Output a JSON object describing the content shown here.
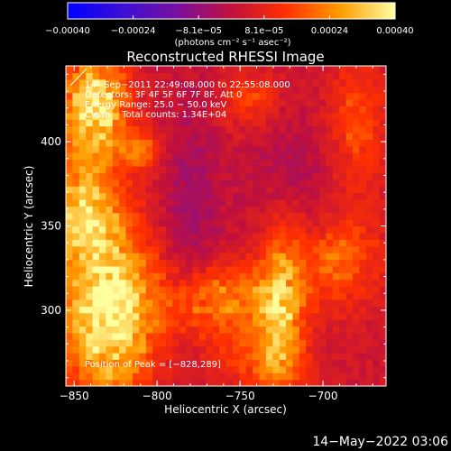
{
  "chart_data": {
    "type": "heatmap",
    "title": "Reconstructed RHESSI Image",
    "xlabel": "Heliocentric X (arcsec)",
    "ylabel": "Heliocentric Y (arcsec)",
    "xlim": [
      -855,
      -662
    ],
    "ylim": [
      255,
      445
    ],
    "x_ticks": [
      {
        "value": -850,
        "label": "−850"
      },
      {
        "value": -800,
        "label": "−800"
      },
      {
        "value": -750,
        "label": "−750"
      },
      {
        "value": -700,
        "label": "−700"
      }
    ],
    "y_ticks": [
      {
        "value": 300,
        "label": "300"
      },
      {
        "value": 350,
        "label": "350"
      },
      {
        "value": 400,
        "label": "400"
      }
    ],
    "colorbar": {
      "range": [
        -0.0004,
        0.0004
      ],
      "tick_labels": [
        "−0.00040",
        "−0.00024",
        "−8.1e−05",
        "8.1e−05",
        "0.00024",
        "0.00040"
      ],
      "unit_label": "(photons cm⁻² s⁻¹ asec⁻²)",
      "colors": [
        "#0000ff",
        "#3b0fd6",
        "#7a0fa0",
        "#c0103c",
        "#ff3000",
        "#ff9c00",
        "#ffffa0"
      ]
    },
    "info_lines": [
      "14−Sep−2011 22:49:08.000 to 22:55:08.000",
      "Detectors: 3F 4F 5F 6F 7F 8F, Att 0",
      "Energy Range: 25.0 − 50.0 keV",
      "Clean    Total counts: 1.34E+04"
    ],
    "peak_label": "Position of Peak = [−828,289]",
    "peak": {
      "x": -828,
      "y": 289
    },
    "intensity_grid": {
      "x_range": [
        -855,
        -662
      ],
      "y_range": [
        255,
        445
      ],
      "nx": 48,
      "ny": 48,
      "min": -0.0001,
      "max": 0.0004,
      "hot_regions": [
        {
          "x": -838,
          "y": 420,
          "sx": 14,
          "sy": 22,
          "v": 0.00036
        },
        {
          "x": -830,
          "y": 300,
          "sx": 20,
          "sy": 35,
          "v": 0.0004
        },
        {
          "x": -845,
          "y": 360,
          "sx": 15,
          "sy": 20,
          "v": 0.00026
        },
        {
          "x": -810,
          "y": 395,
          "sx": 8,
          "sy": 8,
          "v": 0.00018
        },
        {
          "x": -760,
          "y": 305,
          "sx": 25,
          "sy": 15,
          "v": 0.00022
        },
        {
          "x": -725,
          "y": 300,
          "sx": 10,
          "sy": 40,
          "v": 0.00024
        },
        {
          "x": -690,
          "y": 330,
          "sx": 18,
          "sy": 18,
          "v": 0.00016
        },
        {
          "x": -680,
          "y": 410,
          "sx": 12,
          "sy": 30,
          "v": 0.00014
        },
        {
          "x": -745,
          "y": 425,
          "sx": 12,
          "sy": 12,
          "v": 0.00012
        },
        {
          "x": -740,
          "y": 270,
          "sx": 20,
          "sy": 12,
          "v": 0.0001
        }
      ],
      "cold_regions": [
        {
          "x": -780,
          "y": 360,
          "sx": 12,
          "sy": 45,
          "v": -9e-05
        },
        {
          "x": -720,
          "y": 380,
          "sx": 20,
          "sy": 25,
          "v": -7e-05
        }
      ]
    }
  },
  "footer": {
    "date": "14−May−2022 03:06"
  }
}
